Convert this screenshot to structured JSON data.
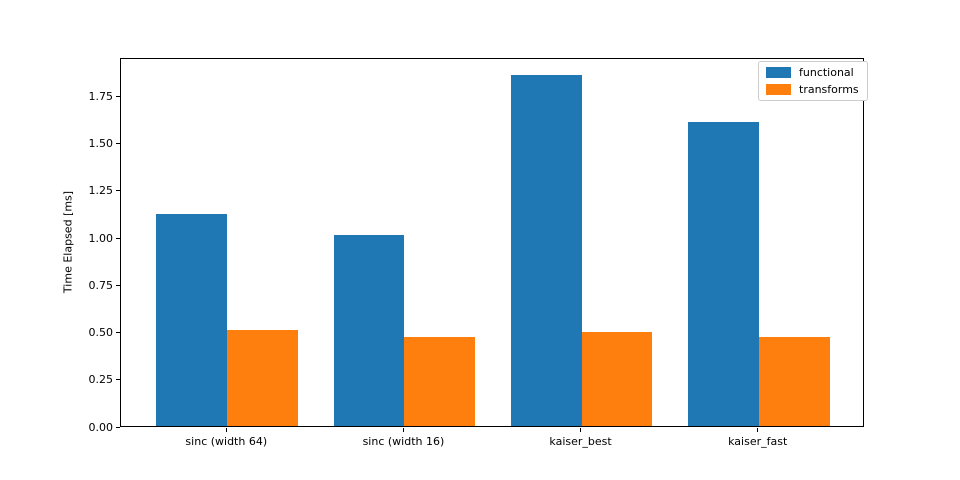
{
  "figure": {
    "background": "#ffffff"
  },
  "chart_data": {
    "type": "bar",
    "title": "",
    "xlabel": "",
    "ylabel": "Time Elapsed [ms]",
    "categories": [
      "sinc (width 64)",
      "sinc (width 16)",
      "kaiser_best",
      "kaiser_fast"
    ],
    "series": [
      {
        "name": "functional",
        "color": "#1f77b4",
        "values": [
          1.12,
          1.01,
          1.86,
          1.61
        ]
      },
      {
        "name": "transforms",
        "color": "#ff7f0e",
        "values": [
          0.51,
          0.47,
          0.5,
          0.47
        ]
      }
    ],
    "bar_width": 0.4,
    "xlim": [
      -0.6,
      3.6
    ],
    "ylim": [
      0,
      1.953
    ],
    "yticks": [
      0.0,
      0.25,
      0.5,
      0.75,
      1.0,
      1.25,
      1.5,
      1.75
    ],
    "ytick_labels": [
      "0.00",
      "0.25",
      "0.50",
      "0.75",
      "1.00",
      "1.25",
      "1.50",
      "1.75"
    ],
    "grid": false,
    "legend": {
      "position": "upper right",
      "entries": [
        "functional",
        "transforms"
      ]
    }
  }
}
